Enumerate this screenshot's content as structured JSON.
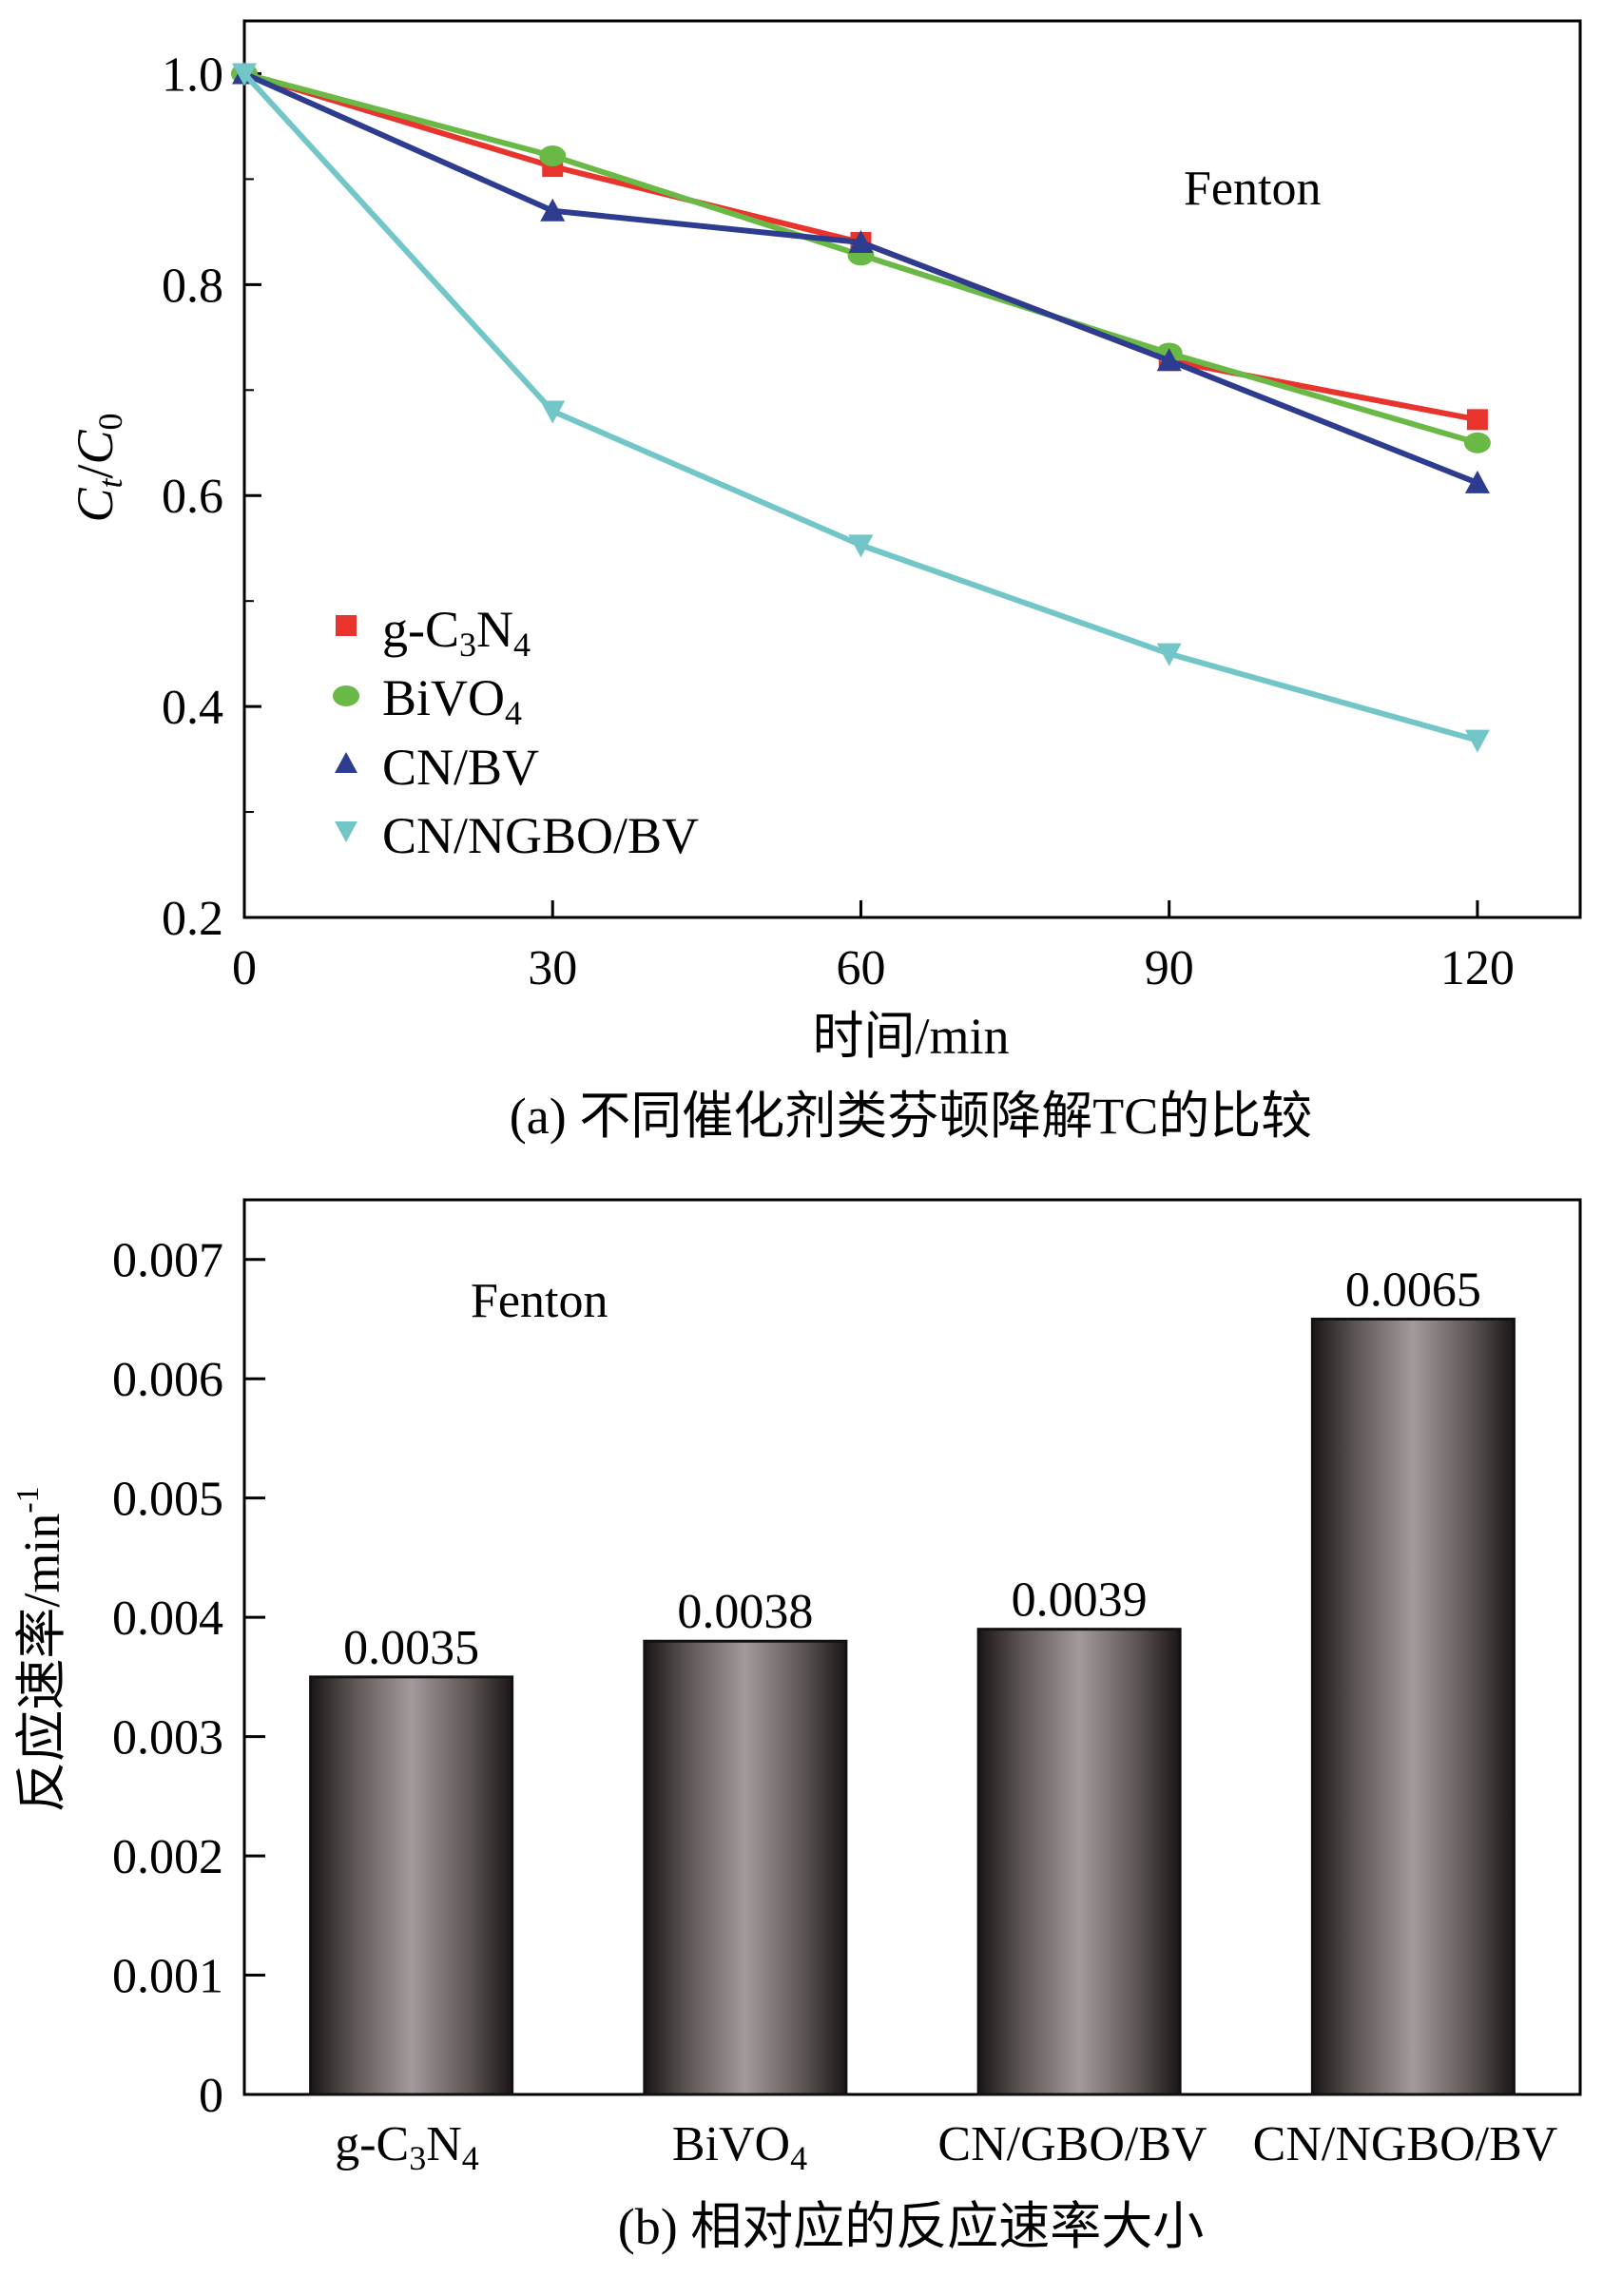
{
  "chart_data": [
    {
      "type": "line",
      "panel": "a",
      "caption": "(a) 不同催化剂类芬顿降解TC的比较",
      "annotation": "Fenton",
      "xlabel": "时间/min",
      "ylabel": "Ct/C0",
      "ylabel_parts": {
        "main": "C",
        "sub_t": "t",
        "slash": "/",
        "main2": "C",
        "sub_0": "0"
      },
      "xlim": [
        0,
        130
      ],
      "ylim": [
        0.2,
        1.05
      ],
      "xticks": [
        0,
        30,
        60,
        90,
        120
      ],
      "xtick_labels": [
        "0",
        "30",
        "60",
        "90",
        "120"
      ],
      "yticks": [
        0.2,
        0.4,
        0.6,
        0.8,
        1.0
      ],
      "ytick_labels": [
        "0.2",
        "0.4",
        "0.6",
        "0.8",
        "1.0"
      ],
      "legend_position": "lower-left",
      "x": [
        0,
        30,
        60,
        90,
        120
      ],
      "series": [
        {
          "name": "g-C3N4",
          "name_html": {
            "a": "g-C",
            "b": "3",
            "c": "N",
            "d": "4"
          },
          "marker": "square",
          "color": "#e8342c",
          "values": [
            1.0,
            0.912,
            0.84,
            0.728,
            0.672
          ]
        },
        {
          "name": "BiVO4",
          "name_html": {
            "a": "BiVO",
            "b": "4"
          },
          "marker": "circle",
          "color": "#6ab845",
          "values": [
            1.0,
            0.922,
            0.828,
            0.735,
            0.65
          ]
        },
        {
          "name": "CN/BV",
          "marker": "triangle-up",
          "color": "#2e3c8f",
          "values": [
            1.0,
            0.87,
            0.84,
            0.728,
            0.612
          ]
        },
        {
          "name": "CN/NGBO/BV",
          "marker": "triangle-down",
          "color": "#73c6c8",
          "values": [
            1.0,
            0.68,
            0.553,
            0.45,
            0.368
          ]
        }
      ]
    },
    {
      "type": "bar",
      "panel": "b",
      "caption": "(b) 相对应的反应速率大小",
      "annotation": "Fenton",
      "ylabel": "反应速率/min",
      "ylabel_sup": "-1",
      "ylim": [
        0,
        0.0075
      ],
      "yticks": [
        0,
        0.001,
        0.002,
        0.003,
        0.004,
        0.005,
        0.006,
        0.007
      ],
      "ytick_labels": [
        "0",
        "0.001",
        "0.002",
        "0.003",
        "0.004",
        "0.005",
        "0.006",
        "0.007"
      ],
      "categories": [
        "g-C3N4",
        "BiVO4",
        "CN/GBO/BV",
        "CN/NGBO/BV"
      ],
      "category_parts": [
        {
          "a": "g-C",
          "b": "3",
          "c": "N",
          "d": "4"
        },
        {
          "a": "BiVO",
          "b": "4"
        },
        {
          "a": "CN/GBO/BV"
        },
        {
          "a": "CN/NGBO/BV"
        }
      ],
      "values": [
        0.0035,
        0.0038,
        0.0039,
        0.0065
      ],
      "value_labels": [
        "0.0035",
        "0.0038",
        "0.0039",
        "0.0065"
      ]
    }
  ]
}
